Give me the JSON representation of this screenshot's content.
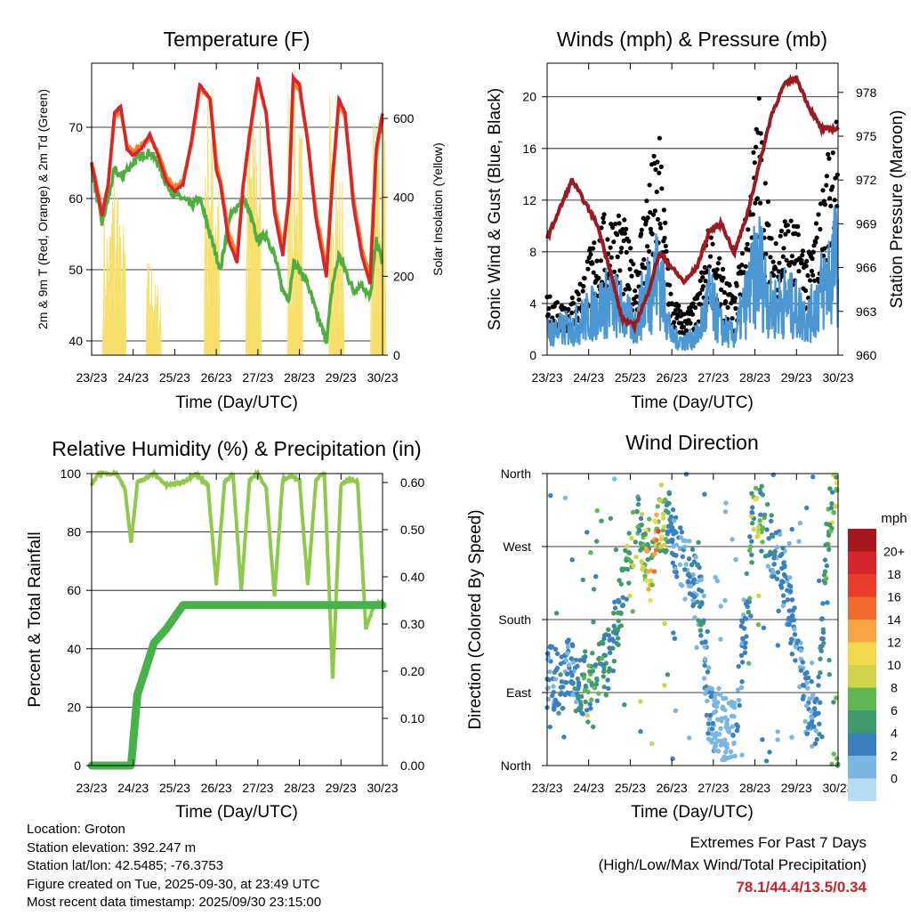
{
  "temp": {
    "title": "Temperature (F)",
    "xlabel": "Time (Day/UTC)",
    "ylabel_left": "2m & 9m T (Red, Orange) & 2m Td (Green)",
    "ylabel_right": "Solar Insolation (Yellow)",
    "x_ticks": [
      "23/23",
      "24/23",
      "25/23",
      "26/23",
      "27/23",
      "28/23",
      "29/23",
      "30/23"
    ],
    "y_ticks": [
      40,
      50,
      60,
      70
    ],
    "y_range": [
      38,
      79
    ],
    "right_ticks": [
      0,
      200,
      400,
      600
    ],
    "right_range": [
      0,
      740
    ]
  },
  "wind": {
    "title": "Winds (mph) & Pressure (mb)",
    "xlabel": "Time (Day/UTC)",
    "ylabel_left": "Sonic Wind & Gust (Blue, Black)",
    "ylabel_right": "Station Pressure (Maroon)",
    "x_ticks": [
      "23/23",
      "24/23",
      "25/23",
      "26/23",
      "27/23",
      "28/23",
      "29/23",
      "30/23"
    ],
    "y_ticks": [
      0,
      4,
      8,
      12,
      16,
      20
    ],
    "y_range": [
      0,
      22.6
    ],
    "right_ticks": [
      960,
      963,
      966,
      969,
      972,
      975,
      978
    ],
    "right_range": [
      960,
      980
    ]
  },
  "rh": {
    "title": "Relative Humidity (%) & Precipitation (in)",
    "xlabel": "Time (Day/UTC)",
    "ylabel": "Percent & Total Rainfall",
    "x_ticks": [
      "23/23",
      "24/23",
      "25/23",
      "26/23",
      "27/23",
      "28/23",
      "29/23",
      "30/23"
    ],
    "y_ticks": [
      0,
      20,
      40,
      60,
      80,
      100
    ],
    "right_ticks": [
      "0.00",
      "0.10",
      "0.20",
      "0.30",
      "0.40",
      "0.50",
      "0.60"
    ]
  },
  "wdir": {
    "title": "Wind Direction",
    "xlabel": "Time (Day/UTC)",
    "ylabel": "Direction (Colored By Speed)",
    "x_ticks": [
      "23/23",
      "24/23",
      "25/23",
      "26/23",
      "27/23",
      "28/23",
      "29/23",
      "30/23"
    ],
    "y_ticks": [
      "North",
      "West",
      "South",
      "East",
      "North"
    ],
    "legend_title": "mph",
    "legend_labels": [
      "20+",
      "18",
      "16",
      "14",
      "12",
      "10",
      "8",
      "6",
      "4",
      "2",
      "0"
    ],
    "legend_colors": [
      "#a5171c",
      "#d7262b",
      "#e83d2a",
      "#f26a2c",
      "#f7a544",
      "#f2d84b",
      "#cfd44a",
      "#63b753",
      "#3f9b6b",
      "#3a7fc0",
      "#7ab6e1",
      "#b6ddf4"
    ]
  },
  "info": {
    "location": "Location: Groton",
    "elevation": "Station elevation: 392.247 m",
    "latlon": "Station lat/lon: 42.5485; -76.3753",
    "created": "Figure created on Tue, 2025-09-30, at 23:49 UTC",
    "recent": "Most recent data timestamp: 2025/09/30 23:15:00"
  },
  "extremes": {
    "line1": "Extremes For Past 7 Days",
    "line2": "(High/Low/Max Wind/Total Precipitation)",
    "values": "78.1/44.4/13.5/0.34"
  },
  "colors": {
    "temp2m": "#d7262b",
    "temp9m": "#f47f2c",
    "dewpoint": "#4fae3f",
    "solar": "#f6df6a",
    "wind": "#4a97d4",
    "gust": "#000000",
    "pressure": "#9c1b22",
    "rh": "#8fc94c",
    "precip": "#47b24a"
  },
  "chart_data": [
    {
      "type": "line",
      "title": "Temperature (F)",
      "xlabel": "Time (Day/UTC)",
      "ylabel": "2m & 9m T (Red, Orange) & 2m Td (Green)",
      "y2label": "Solar Insolation (Yellow)",
      "ylim": [
        38,
        79
      ],
      "y2lim": [
        0,
        740
      ],
      "x": [
        0,
        0.1,
        0.25,
        0.4,
        0.55,
        0.7,
        0.85,
        1.0,
        1.2,
        1.4,
        1.6,
        1.8,
        2.0,
        2.2,
        2.4,
        2.6,
        2.85,
        3.0,
        3.1,
        3.3,
        3.5,
        3.65,
        3.8,
        4.0,
        4.2,
        4.4,
        4.6,
        4.75,
        4.85,
        5.0,
        5.2,
        5.4,
        5.65,
        5.8,
        5.95,
        6.1,
        6.3,
        6.5,
        6.7,
        6.85,
        7.0
      ],
      "series": [
        {
          "name": "2m T",
          "values": [
            65,
            62,
            57.5,
            62,
            72,
            73,
            67,
            66,
            67,
            69,
            66,
            62.5,
            61,
            62,
            68,
            76,
            74,
            64,
            62,
            54,
            51,
            62,
            69,
            77,
            72,
            58,
            52,
            60,
            77,
            76,
            68,
            57,
            49,
            63,
            74,
            72,
            59,
            52,
            48,
            67,
            72
          ]
        },
        {
          "name": "9m T",
          "values": [
            65,
            62.5,
            58,
            62,
            71.5,
            72.5,
            67.5,
            66.5,
            67.5,
            68.5,
            66.5,
            63,
            61.5,
            62.5,
            67.5,
            75.5,
            74,
            65,
            62.5,
            55,
            52,
            62,
            68.5,
            76.5,
            72,
            59,
            53,
            60,
            76.5,
            75.5,
            68,
            58,
            50,
            63,
            73.5,
            71.5,
            60,
            53,
            49,
            66.5,
            71
          ]
        },
        {
          "name": "2m Td",
          "values": [
            64.5,
            61,
            56.5,
            60,
            64,
            63,
            64,
            65,
            66,
            66.5,
            65,
            62,
            60.5,
            60,
            59,
            60,
            55,
            52,
            50,
            57,
            59,
            60,
            58,
            54,
            55,
            52,
            47,
            46,
            51,
            50,
            48,
            44,
            40,
            48,
            52,
            50,
            47,
            48,
            46,
            54,
            51
          ]
        }
      ],
      "solar_peaks_x": [
        0.35,
        0.55,
        0.7,
        1.4,
        1.55,
        2.8,
        2.95,
        3.8,
        3.95,
        4.8,
        4.95,
        5.8,
        5.95,
        6.8,
        6.95
      ],
      "solar_peaks": [
        370,
        510,
        350,
        250,
        190,
        720,
        580,
        620,
        700,
        730,
        600,
        710,
        480,
        620,
        700
      ]
    },
    {
      "type": "line",
      "title": "Winds (mph) & Pressure (mb)",
      "xlabel": "Time (Day/UTC)",
      "ylabel": "Sonic Wind & Gust (Blue, Black)",
      "y2label": "Station Pressure (Maroon)",
      "ylim": [
        0,
        22.6
      ],
      "y2lim": [
        960,
        980
      ],
      "x": [
        0,
        0.3,
        0.6,
        0.9,
        1.2,
        1.5,
        1.8,
        2.1,
        2.4,
        2.7,
        3.0,
        3.3,
        3.6,
        3.9,
        4.2,
        4.5,
        4.8,
        5.1,
        5.4,
        5.7,
        6.0,
        6.3,
        6.6,
        6.9
      ],
      "series": [
        {
          "name": "Sonic Wind",
          "values": [
            2.5,
            2.8,
            3,
            4,
            5,
            6,
            5,
            3,
            7,
            9,
            2,
            1.5,
            2,
            6,
            3,
            2,
            6,
            10,
            5,
            6,
            5,
            4,
            7,
            10
          ]
        },
        {
          "name": "Gust",
          "values": [
            4,
            4,
            4,
            6,
            9,
            10,
            10,
            6,
            12,
            15,
            4,
            3,
            4,
            9,
            6,
            4,
            10,
            18,
            8,
            10,
            9,
            7,
            11,
            17
          ]
        },
        {
          "name": "Station Pressure",
          "values": [
            968,
            970,
            972,
            970.5,
            969,
            966,
            962.5,
            962,
            964,
            967,
            966,
            965,
            966,
            968.5,
            969,
            967,
            969.5,
            973,
            976.5,
            978.5,
            979,
            977,
            975.5,
            975.5
          ]
        }
      ]
    },
    {
      "type": "line",
      "title": "Relative Humidity (%) & Precipitation (in)",
      "xlabel": "Time (Day/UTC)",
      "ylabel": "Percent & Total Rainfall",
      "ylim": [
        0,
        100
      ],
      "y2lim": [
        0,
        0.6
      ],
      "x": [
        0,
        0.15,
        0.6,
        0.8,
        0.95,
        1.1,
        1.5,
        1.8,
        2.2,
        2.5,
        2.8,
        3.0,
        3.2,
        3.4,
        3.6,
        3.8,
        4.0,
        4.2,
        4.4,
        4.6,
        4.8,
        5.0,
        5.2,
        5.4,
        5.6,
        5.8,
        6.0,
        6.2,
        6.4,
        6.6,
        6.8,
        7.0
      ],
      "series": [
        {
          "name": "Relative Humidity",
          "values": [
            96,
            100,
            100,
            95,
            76,
            97,
            100,
            96,
            97,
            100,
            96,
            62,
            97,
            100,
            60,
            98,
            100,
            95,
            58,
            98,
            99,
            98,
            62,
            98,
            100,
            30,
            96,
            98,
            97,
            47,
            55,
            56
          ]
        },
        {
          "name": "Total Precipitation",
          "values": [
            0,
            0,
            0,
            0,
            0,
            0.15,
            0.26,
            0.29,
            0.34,
            0.34,
            0.34,
            0.34,
            0.34,
            0.34,
            0.34,
            0.34,
            0.34,
            0.34,
            0.34,
            0.34,
            0.34,
            0.34,
            0.34,
            0.34,
            0.34,
            0.34,
            0.34,
            0.34,
            0.34,
            0.34,
            0.34,
            0.34
          ]
        }
      ]
    },
    {
      "type": "scatter",
      "title": "Wind Direction",
      "xlabel": "Time (Day/UTC)",
      "ylabel": "Direction (Colored By Speed)",
      "ylim": [
        0,
        360
      ],
      "y_categories": [
        "North",
        "East",
        "South",
        "West",
        "North"
      ],
      "x": [
        0.1,
        0.3,
        0.5,
        0.8,
        1.0,
        1.2,
        1.5,
        1.8,
        2.0,
        2.2,
        2.5,
        2.7,
        2.9,
        3.2,
        3.5,
        3.7,
        3.9,
        4.2,
        4.5,
        4.8,
        5.0,
        5.3,
        5.6,
        5.9,
        6.2,
        6.5,
        6.8,
        6.95
      ],
      "series": [
        {
          "name": "Direction (deg)",
          "values": [
            110,
            100,
            120,
            100,
            90,
            115,
            130,
            210,
            260,
            300,
            240,
            290,
            305,
            260,
            230,
            200,
            60,
            50,
            40,
            200,
            320,
            280,
            250,
            180,
            80,
            50,
            320,
            350
          ]
        },
        {
          "name": "Speed (mph)",
          "values": [
            3,
            4,
            2,
            5,
            7,
            6,
            4,
            5,
            8,
            6,
            12,
            13,
            4,
            2,
            3,
            4,
            2,
            1,
            2,
            4,
            10,
            4,
            3,
            3,
            2,
            3,
            6,
            11
          ]
        }
      ]
    }
  ]
}
